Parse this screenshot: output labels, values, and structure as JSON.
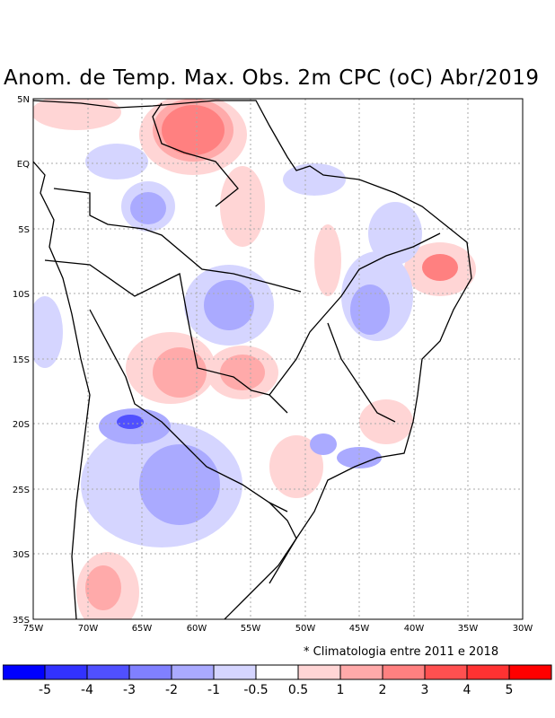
{
  "title": "Anom. de Temp. Max. Obs. 2m CPC (oC) Abr/2019",
  "map": {
    "lon_labels": [
      "75W",
      "70W",
      "65W",
      "60W",
      "55W",
      "50W",
      "45W",
      "40W",
      "35W",
      "30W"
    ],
    "lat_labels": [
      "5N",
      "EQ",
      "5S",
      "10S",
      "15S",
      "20S",
      "25S",
      "30S",
      "35S"
    ]
  },
  "footnote": "* Climatologia entre 2011 e 2018",
  "colorbar": {
    "colors": [
      "#0000ff",
      "#3232ff",
      "#5050ff",
      "#8080ff",
      "#aaaaff",
      "#d5d5ff",
      "#ffffff",
      "#ffd5d5",
      "#ffaaaa",
      "#ff8080",
      "#ff5050",
      "#ff3232",
      "#ff0000"
    ],
    "labels": [
      "-5",
      "-4",
      "-3",
      "-2",
      "-1",
      "-0.5",
      "0.5",
      "1",
      "2",
      "3",
      "4",
      "5"
    ]
  }
}
